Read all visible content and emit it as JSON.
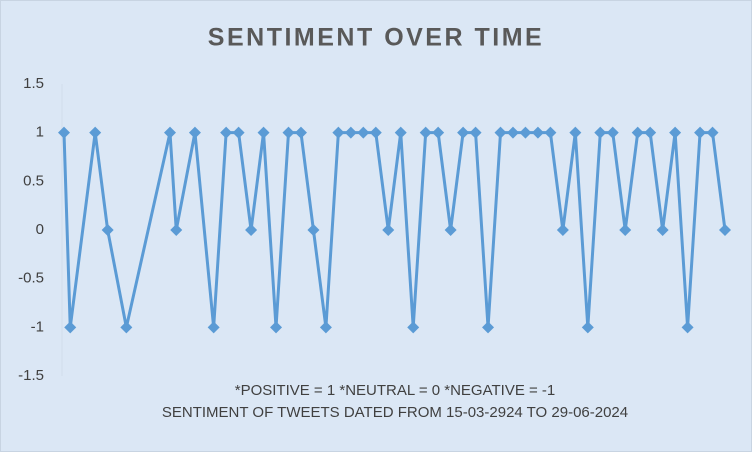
{
  "chart_data": {
    "type": "line",
    "title": "SENTIMENT OVER TIME",
    "annotations": [
      "*POSITIVE = 1  *NEUTRAL = 0  *NEGATIVE = -1",
      "SENTIMENT OF TWEETS DATED FROM 15-03-2924 TO 29-06-2024"
    ],
    "x": [
      0,
      0.5,
      2.5,
      3.5,
      5,
      8.5,
      9,
      10.5,
      12,
      13,
      14,
      15,
      16,
      17,
      18,
      19,
      20,
      21,
      22,
      23,
      24,
      25,
      26,
      27,
      28,
      29,
      30,
      31,
      32,
      33,
      34,
      35,
      36,
      37,
      38,
      39,
      40,
      41,
      42,
      43,
      44,
      45,
      46,
      47,
      48,
      49,
      50,
      51,
      52,
      53
    ],
    "values": [
      1,
      -1,
      1,
      0,
      -1,
      1,
      0,
      1,
      -1,
      1,
      1,
      0,
      1,
      -1,
      1,
      1,
      0,
      -1,
      1,
      1,
      1,
      1,
      0,
      1,
      -1,
      1,
      1,
      0,
      1,
      1,
      -1,
      1,
      1,
      1,
      1,
      1,
      0,
      1,
      -1,
      1,
      1,
      0,
      1,
      1,
      0,
      1,
      -1,
      1,
      1,
      0
    ],
    "color": "#5b9bd5",
    "xlim": [
      0,
      53
    ],
    "ylim": [
      -1.5,
      1.5
    ],
    "yticks": [
      1.5,
      1,
      0.5,
      0,
      -0.5,
      -1,
      -1.5
    ],
    "grid": false
  }
}
